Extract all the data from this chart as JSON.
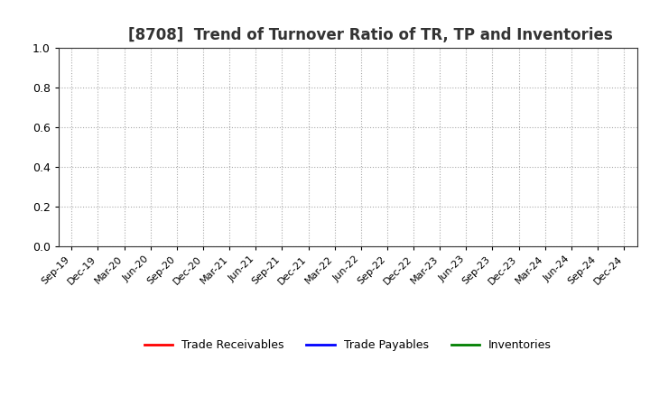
{
  "title": "[8708]  Trend of Turnover Ratio of TR, TP and Inventories",
  "title_fontsize": 12,
  "ylim": [
    0.0,
    1.0
  ],
  "yticks": [
    0.0,
    0.2,
    0.4,
    0.6,
    0.8,
    1.0
  ],
  "background_color": "#ffffff",
  "plot_bg_color": "#ffffff",
  "grid_color": "#aaaaaa",
  "x_labels": [
    "Sep-19",
    "Dec-19",
    "Mar-20",
    "Jun-20",
    "Sep-20",
    "Dec-20",
    "Mar-21",
    "Jun-21",
    "Sep-21",
    "Dec-21",
    "Mar-22",
    "Jun-22",
    "Sep-22",
    "Dec-22",
    "Mar-23",
    "Jun-23",
    "Sep-23",
    "Dec-23",
    "Mar-24",
    "Jun-24",
    "Sep-24",
    "Dec-24"
  ],
  "legend_entries": [
    {
      "label": "Trade Receivables",
      "color": "#ff0000"
    },
    {
      "label": "Trade Payables",
      "color": "#0000ff"
    },
    {
      "label": "Inventories",
      "color": "#008000"
    }
  ],
  "series": [
    {
      "name": "Trade Receivables",
      "color": "#ff0000"
    },
    {
      "name": "Trade Payables",
      "color": "#0000ff"
    },
    {
      "name": "Inventories",
      "color": "#008000"
    }
  ]
}
